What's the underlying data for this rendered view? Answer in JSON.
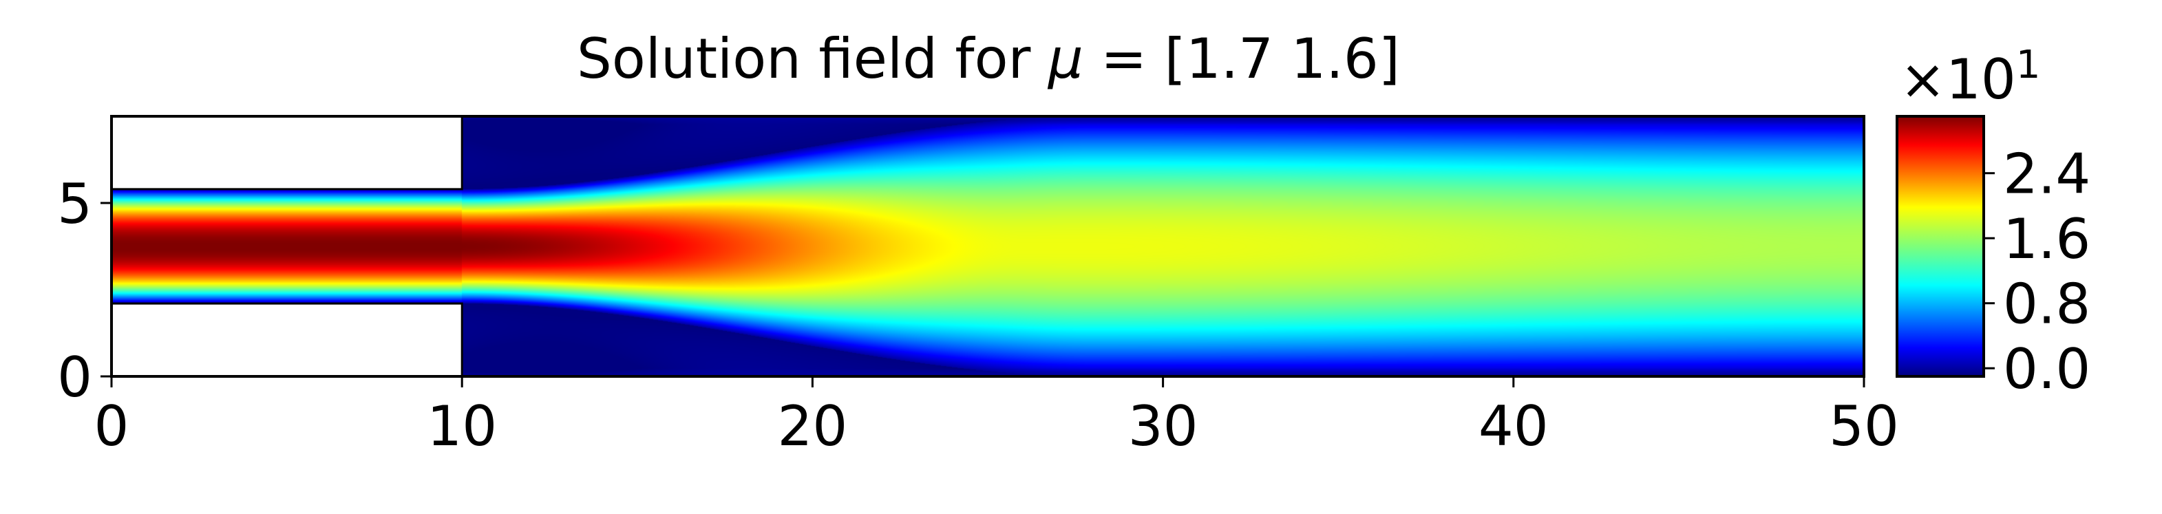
{
  "chart_data": {
    "type": "heatmap",
    "title_prefix": "Solution field for ",
    "title_symbol": "μ",
    "title_suffix": " = [1.7 1.6]",
    "x_ticks": [
      "0",
      "10",
      "20",
      "30",
      "40",
      "50"
    ],
    "y_ticks": [
      "0",
      "5"
    ],
    "xlim": [
      0,
      50
    ],
    "ylim": [
      0,
      7.5
    ],
    "domain": {
      "inlet_channel": {
        "x": [
          0,
          10
        ],
        "y": [
          2.1,
          5.4
        ]
      },
      "expansion": {
        "x": [
          10,
          50
        ],
        "y": [
          0,
          7.5
        ]
      }
    },
    "field_model": {
      "peak_value": 31,
      "inlet_peak_region_end_x": 12,
      "mixing_end_x": 18,
      "fully_developed_max": 18.5,
      "fully_developed_x": 28,
      "downstream_max": 16
    },
    "colorbar": {
      "colormap": "jet",
      "range": [
        -1,
        31
      ],
      "ticks": [
        0.0,
        0.8,
        1.6,
        2.4
      ],
      "tick_labels": [
        "0.0",
        "0.8",
        "1.6",
        "2.4"
      ],
      "scale_label_prefix": "×10",
      "scale_label_exp": "1"
    },
    "grid": false
  }
}
